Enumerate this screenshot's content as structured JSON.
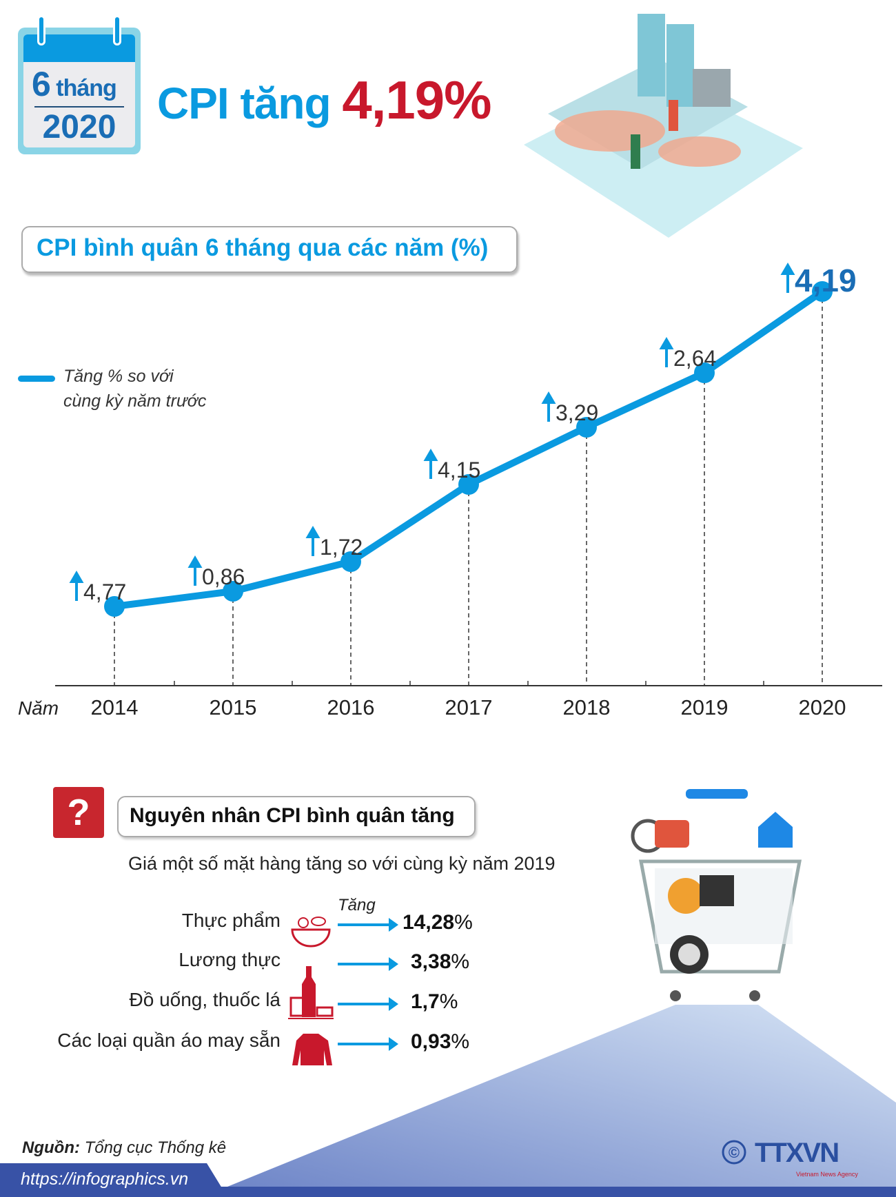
{
  "header": {
    "calendar_months_num": "6",
    "calendar_months_word": "tháng",
    "calendar_year": "2020",
    "headline_prefix": "CPI tăng",
    "headline_value": "4,19%"
  },
  "chart_section": {
    "title": "CPI bình quân 6 tháng qua các năm (%)",
    "legend": [
      "Tăng % so với",
      "cùng kỳ năm trước"
    ],
    "x_axis_label": "Năm"
  },
  "chart_data": {
    "type": "line",
    "title": "CPI bình quân 6 tháng qua các năm (%)",
    "xlabel": "Năm",
    "categories": [
      "2014",
      "2015",
      "2016",
      "2017",
      "2018",
      "2019",
      "2020"
    ],
    "series": [
      {
        "name": "Tăng % so với cùng kỳ năm trước",
        "values": [
          4.77,
          0.86,
          1.72,
          4.15,
          3.29,
          2.64,
          4.19
        ]
      }
    ],
    "data_labels": [
      "4,77",
      "0,86",
      "1,72",
      "4,15",
      "3,29",
      "2,64",
      "4,19"
    ],
    "color": "#0a9ae0",
    "grid": false
  },
  "causes": {
    "icon": "?",
    "title": "Nguyên nhân CPI bình quân tăng",
    "subtitle": "Giá một số mặt hàng tăng so với cùng kỳ năm 2019",
    "arrow_label": "Tăng",
    "items": [
      {
        "label": "Thực phẩm",
        "value": "14,28",
        "unit": "%"
      },
      {
        "label": "Lương thực",
        "value": "3,38",
        "unit": "%"
      },
      {
        "label": "Đồ uống, thuốc lá",
        "value": "1,7",
        "unit": "%"
      },
      {
        "label": "Các loại quần áo may sẵn",
        "value": "0,93",
        "unit": "%"
      }
    ]
  },
  "footer": {
    "source_label": "Nguồn:",
    "source": "Tổng cục Thống kê",
    "url": "https://infographics.vn",
    "logo_text": "TTXVN",
    "logo_sub": "Vietnam News Agency",
    "copyright": "©"
  },
  "colors": {
    "accent": "#0a9ae0",
    "highlight": "#c8182c",
    "footer": "#3852a6"
  }
}
